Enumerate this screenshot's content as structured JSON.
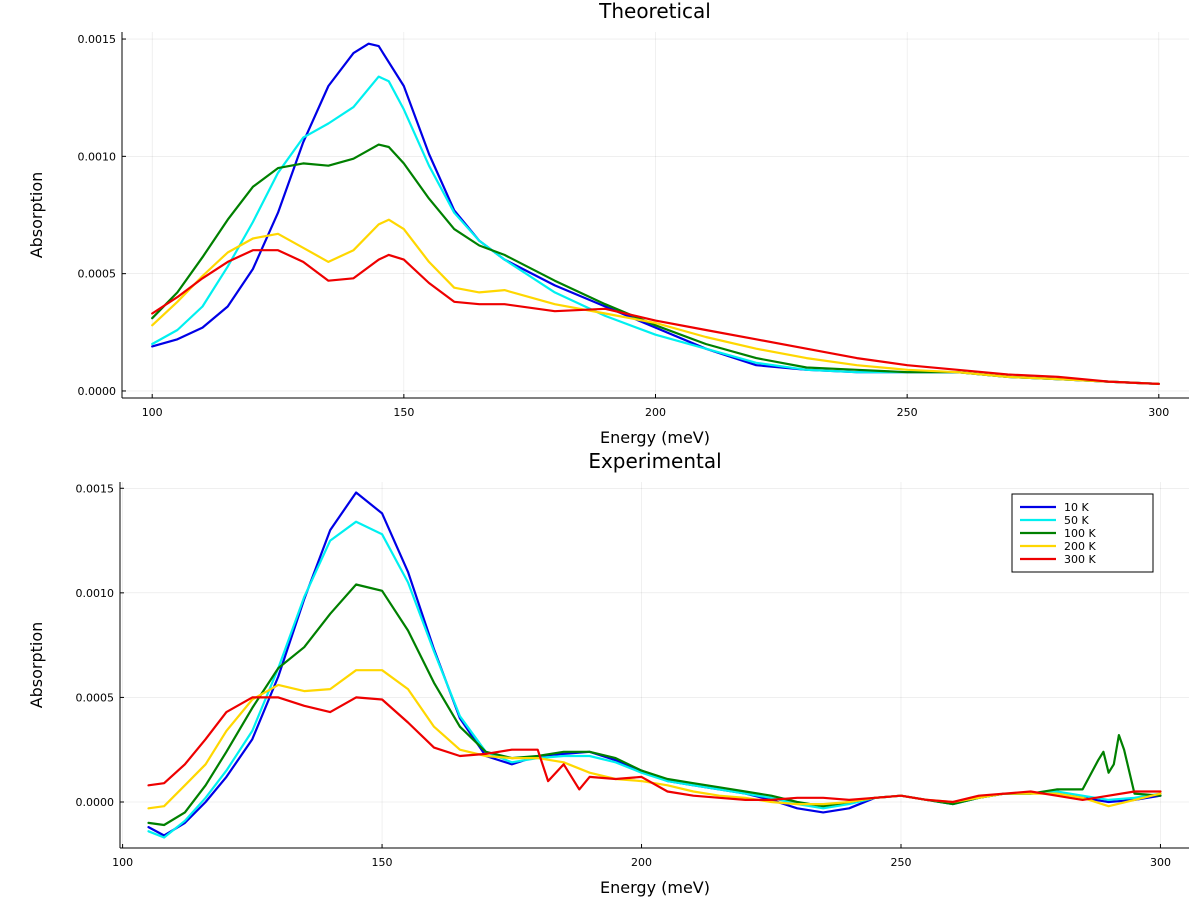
{
  "colors": {
    "10 K": "#0000e6",
    "50 K": "#00f0f0",
    "100 K": "#008000",
    "200 K": "#ffd700",
    "300 K": "#ee0000"
  },
  "chart_data": [
    {
      "type": "line",
      "title": "Theoretical",
      "xlabel": "Energy (meV)",
      "ylabel": "Absorption",
      "xlim": [
        94,
        306
      ],
      "ylim": [
        -3e-05,
        0.00153
      ],
      "xticks": [
        "100",
        "150",
        "200",
        "250",
        "300"
      ],
      "yticks": [
        "0.0000",
        "0.0005",
        "0.0010",
        "0.0015"
      ],
      "grid": true,
      "legend": "none",
      "series": [
        {
          "name": "10 K",
          "x": [
            100,
            105,
            110,
            115,
            120,
            125,
            130,
            135,
            140,
            143,
            145,
            150,
            155,
            160,
            165,
            170,
            180,
            190,
            200,
            210,
            220,
            230,
            240,
            250,
            260,
            270,
            280,
            290,
            300
          ],
          "y": [
            0.00019,
            0.00022,
            0.00027,
            0.00036,
            0.00052,
            0.00076,
            0.00106,
            0.0013,
            0.00144,
            0.00148,
            0.00147,
            0.0013,
            0.00101,
            0.00077,
            0.00064,
            0.00056,
            0.00045,
            0.00036,
            0.00027,
            0.00018,
            0.00011,
            9e-05,
            8e-05,
            8e-05,
            8e-05,
            6e-05,
            5e-05,
            4e-05,
            3e-05
          ]
        },
        {
          "name": "50 K",
          "x": [
            100,
            105,
            110,
            115,
            120,
            125,
            130,
            135,
            140,
            145,
            147,
            150,
            155,
            160,
            165,
            170,
            180,
            190,
            200,
            210,
            220,
            230,
            240,
            250,
            260,
            270,
            280,
            290,
            300
          ],
          "y": [
            0.0002,
            0.00026,
            0.00036,
            0.00053,
            0.00072,
            0.00093,
            0.00108,
            0.00114,
            0.00121,
            0.00134,
            0.00132,
            0.0012,
            0.00096,
            0.00076,
            0.00064,
            0.00056,
            0.00042,
            0.00032,
            0.00024,
            0.00018,
            0.00012,
            9e-05,
            8e-05,
            8e-05,
            8e-05,
            6e-05,
            5e-05,
            4e-05,
            3e-05
          ]
        },
        {
          "name": "100 K",
          "x": [
            100,
            105,
            110,
            115,
            120,
            125,
            130,
            135,
            140,
            145,
            147,
            150,
            155,
            160,
            165,
            170,
            180,
            190,
            200,
            210,
            220,
            230,
            240,
            250,
            260,
            270,
            280,
            290,
            300
          ],
          "y": [
            0.00031,
            0.00042,
            0.00057,
            0.00073,
            0.00087,
            0.00095,
            0.00097,
            0.00096,
            0.00099,
            0.00105,
            0.00104,
            0.00097,
            0.00082,
            0.00069,
            0.00062,
            0.00058,
            0.00047,
            0.00037,
            0.00028,
            0.0002,
            0.00014,
            0.0001,
            9e-05,
            8e-05,
            8e-05,
            6e-05,
            5e-05,
            4e-05,
            3e-05
          ]
        },
        {
          "name": "200 K",
          "x": [
            100,
            105,
            110,
            115,
            120,
            125,
            130,
            135,
            140,
            145,
            147,
            150,
            155,
            160,
            165,
            170,
            180,
            190,
            200,
            210,
            220,
            230,
            240,
            250,
            260,
            270,
            280,
            290,
            300
          ],
          "y": [
            0.00028,
            0.00038,
            0.00049,
            0.00059,
            0.00065,
            0.00067,
            0.00061,
            0.00055,
            0.0006,
            0.00071,
            0.00073,
            0.00069,
            0.00055,
            0.00044,
            0.00042,
            0.00043,
            0.00037,
            0.00033,
            0.00029,
            0.00023,
            0.00018,
            0.00014,
            0.00011,
            9e-05,
            8e-05,
            6e-05,
            5e-05,
            4e-05,
            3e-05
          ]
        },
        {
          "name": "300 K",
          "x": [
            100,
            105,
            110,
            115,
            120,
            125,
            130,
            135,
            140,
            145,
            147,
            150,
            155,
            160,
            165,
            170,
            180,
            190,
            200,
            210,
            220,
            230,
            240,
            250,
            260,
            270,
            280,
            290,
            300
          ],
          "y": [
            0.00033,
            0.0004,
            0.00048,
            0.00055,
            0.0006,
            0.0006,
            0.00055,
            0.00047,
            0.00048,
            0.00056,
            0.00058,
            0.00056,
            0.00046,
            0.00038,
            0.00037,
            0.00037,
            0.00034,
            0.00035,
            0.0003,
            0.00026,
            0.00022,
            0.00018,
            0.00014,
            0.00011,
            9e-05,
            7e-05,
            6e-05,
            4e-05,
            3e-05
          ]
        }
      ]
    },
    {
      "type": "line",
      "title": "Experimental",
      "xlabel": "Energy (meV)",
      "ylabel": "Absorption",
      "xlim": [
        99.5,
        305.5
      ],
      "ylim": [
        -0.00022,
        0.00153
      ],
      "xticks": [
        "100",
        "150",
        "200",
        "250",
        "300"
      ],
      "yticks": [
        "0.0000",
        "0.0005",
        "0.0010",
        "0.0015"
      ],
      "grid": true,
      "legend": "top-right",
      "series": [
        {
          "name": "10 K",
          "x": [
            105,
            108,
            112,
            116,
            120,
            125,
            130,
            135,
            140,
            145,
            150,
            155,
            160,
            165,
            170,
            175,
            180,
            185,
            190,
            195,
            200,
            205,
            210,
            215,
            220,
            225,
            230,
            235,
            240,
            245,
            250,
            255,
            260,
            265,
            270,
            275,
            280,
            285,
            290,
            295,
            300
          ],
          "y": [
            -0.00012,
            -0.00016,
            -0.0001,
            0.0,
            0.00012,
            0.0003,
            0.0006,
            0.00097,
            0.0013,
            0.00148,
            0.00138,
            0.0011,
            0.00073,
            0.0004,
            0.00022,
            0.00018,
            0.00022,
            0.00023,
            0.00024,
            0.0002,
            0.00015,
            0.0001,
            8e-05,
            6e-05,
            4e-05,
            1e-05,
            -3e-05,
            -5e-05,
            -3e-05,
            2e-05,
            3e-05,
            1e-05,
            -1e-05,
            2e-05,
            4e-05,
            4e-05,
            5e-05,
            2e-05,
            0.0,
            1e-05,
            3e-05
          ]
        },
        {
          "name": "50 K",
          "x": [
            105,
            108,
            112,
            116,
            120,
            125,
            130,
            135,
            140,
            145,
            150,
            155,
            160,
            165,
            170,
            175,
            180,
            185,
            190,
            195,
            200,
            205,
            210,
            215,
            220,
            225,
            230,
            235,
            240,
            245,
            250,
            255,
            260,
            265,
            270,
            275,
            280,
            285,
            290,
            295,
            300
          ],
          "y": [
            -0.00014,
            -0.00017,
            -9e-05,
            2e-05,
            0.00015,
            0.00034,
            0.00064,
            0.00098,
            0.00125,
            0.00134,
            0.00128,
            0.00105,
            0.00072,
            0.00041,
            0.00024,
            0.00019,
            0.00021,
            0.00022,
            0.00022,
            0.00019,
            0.00014,
            0.0001,
            8e-05,
            6e-05,
            4e-05,
            2e-05,
            -1e-05,
            -3e-05,
            -1e-05,
            2e-05,
            3e-05,
            1e-05,
            -1e-05,
            2e-05,
            4e-05,
            4e-05,
            5e-05,
            3e-05,
            1e-05,
            2e-05,
            4e-05
          ]
        },
        {
          "name": "100 K",
          "x": [
            105,
            108,
            112,
            116,
            120,
            125,
            130,
            135,
            140,
            145,
            150,
            155,
            160,
            165,
            170,
            175,
            180,
            185,
            190,
            195,
            200,
            205,
            210,
            215,
            220,
            225,
            230,
            235,
            240,
            245,
            250,
            255,
            260,
            265,
            270,
            275,
            280,
            285,
            288,
            289,
            290,
            291,
            292,
            293,
            295,
            300
          ],
          "y": [
            -0.0001,
            -0.00011,
            -5e-05,
            8e-05,
            0.00024,
            0.00045,
            0.00064,
            0.00074,
            0.0009,
            0.00104,
            0.00101,
            0.00082,
            0.00057,
            0.00036,
            0.00024,
            0.00021,
            0.00022,
            0.00024,
            0.00024,
            0.00021,
            0.00015,
            0.00011,
            9e-05,
            7e-05,
            5e-05,
            3e-05,
            0.0,
            -2e-05,
            0.0,
            2e-05,
            3e-05,
            1e-05,
            -1e-05,
            2e-05,
            4e-05,
            4e-05,
            6e-05,
            6e-05,
            0.0002,
            0.00024,
            0.00014,
            0.00018,
            0.00032,
            0.00025,
            4e-05,
            3e-05
          ]
        },
        {
          "name": "200 K",
          "x": [
            105,
            108,
            112,
            116,
            120,
            125,
            130,
            135,
            140,
            145,
            150,
            155,
            160,
            165,
            170,
            175,
            180,
            185,
            190,
            195,
            200,
            205,
            210,
            215,
            220,
            225,
            230,
            235,
            240,
            245,
            250,
            255,
            260,
            265,
            270,
            275,
            280,
            285,
            290,
            295,
            300
          ],
          "y": [
            -3e-05,
            -2e-05,
            8e-05,
            0.00018,
            0.00034,
            0.00049,
            0.00056,
            0.00053,
            0.00054,
            0.00063,
            0.00063,
            0.00054,
            0.00036,
            0.00025,
            0.00022,
            0.00021,
            0.00021,
            0.00019,
            0.00014,
            0.00011,
            0.0001,
            8e-05,
            5e-05,
            3e-05,
            2e-05,
            0.0,
            -1e-05,
            -1e-05,
            0.0,
            2e-05,
            3e-05,
            1e-05,
            0.0,
            2e-05,
            4e-05,
            4e-05,
            4e-05,
            2e-05,
            -2e-05,
            1e-05,
            4e-05
          ]
        },
        {
          "name": "300 K",
          "x": [
            105,
            108,
            112,
            116,
            120,
            125,
            130,
            135,
            140,
            145,
            150,
            155,
            160,
            165,
            170,
            175,
            180,
            182,
            185,
            188,
            190,
            195,
            200,
            205,
            210,
            215,
            220,
            225,
            230,
            235,
            240,
            245,
            250,
            255,
            260,
            265,
            270,
            275,
            280,
            285,
            290,
            295,
            300
          ],
          "y": [
            8e-05,
            9e-05,
            0.00018,
            0.0003,
            0.00043,
            0.0005,
            0.0005,
            0.00046,
            0.00043,
            0.0005,
            0.00049,
            0.00038,
            0.00026,
            0.00022,
            0.00023,
            0.00025,
            0.00025,
            0.0001,
            0.00018,
            6e-05,
            0.00012,
            0.00011,
            0.00012,
            5e-05,
            3e-05,
            2e-05,
            1e-05,
            1e-05,
            2e-05,
            2e-05,
            1e-05,
            2e-05,
            3e-05,
            1e-05,
            0.0,
            3e-05,
            4e-05,
            5e-05,
            3e-05,
            1e-05,
            3e-05,
            5e-05,
            5e-05
          ]
        }
      ]
    }
  ]
}
